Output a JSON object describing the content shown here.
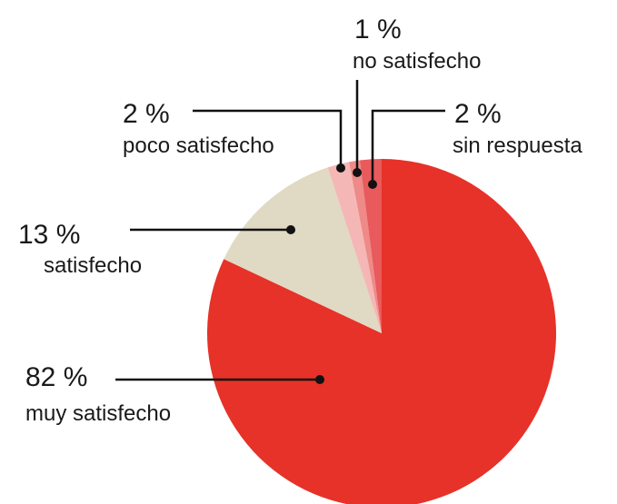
{
  "chart_data": {
    "type": "pie",
    "categories": [
      "muy satisfecho",
      "satisfecho",
      "poco satisfecho",
      "no satisfecho",
      "sin respuesta"
    ],
    "values": [
      82,
      13,
      2,
      1,
      2
    ],
    "value_labels": [
      "82 %",
      "13 %",
      "2 %",
      "1 %",
      "2 %"
    ],
    "colors": [
      "#e63228",
      "#e0d9c3",
      "#f5b7b5",
      "#ee8a88",
      "#e85a5c"
    ]
  }
}
